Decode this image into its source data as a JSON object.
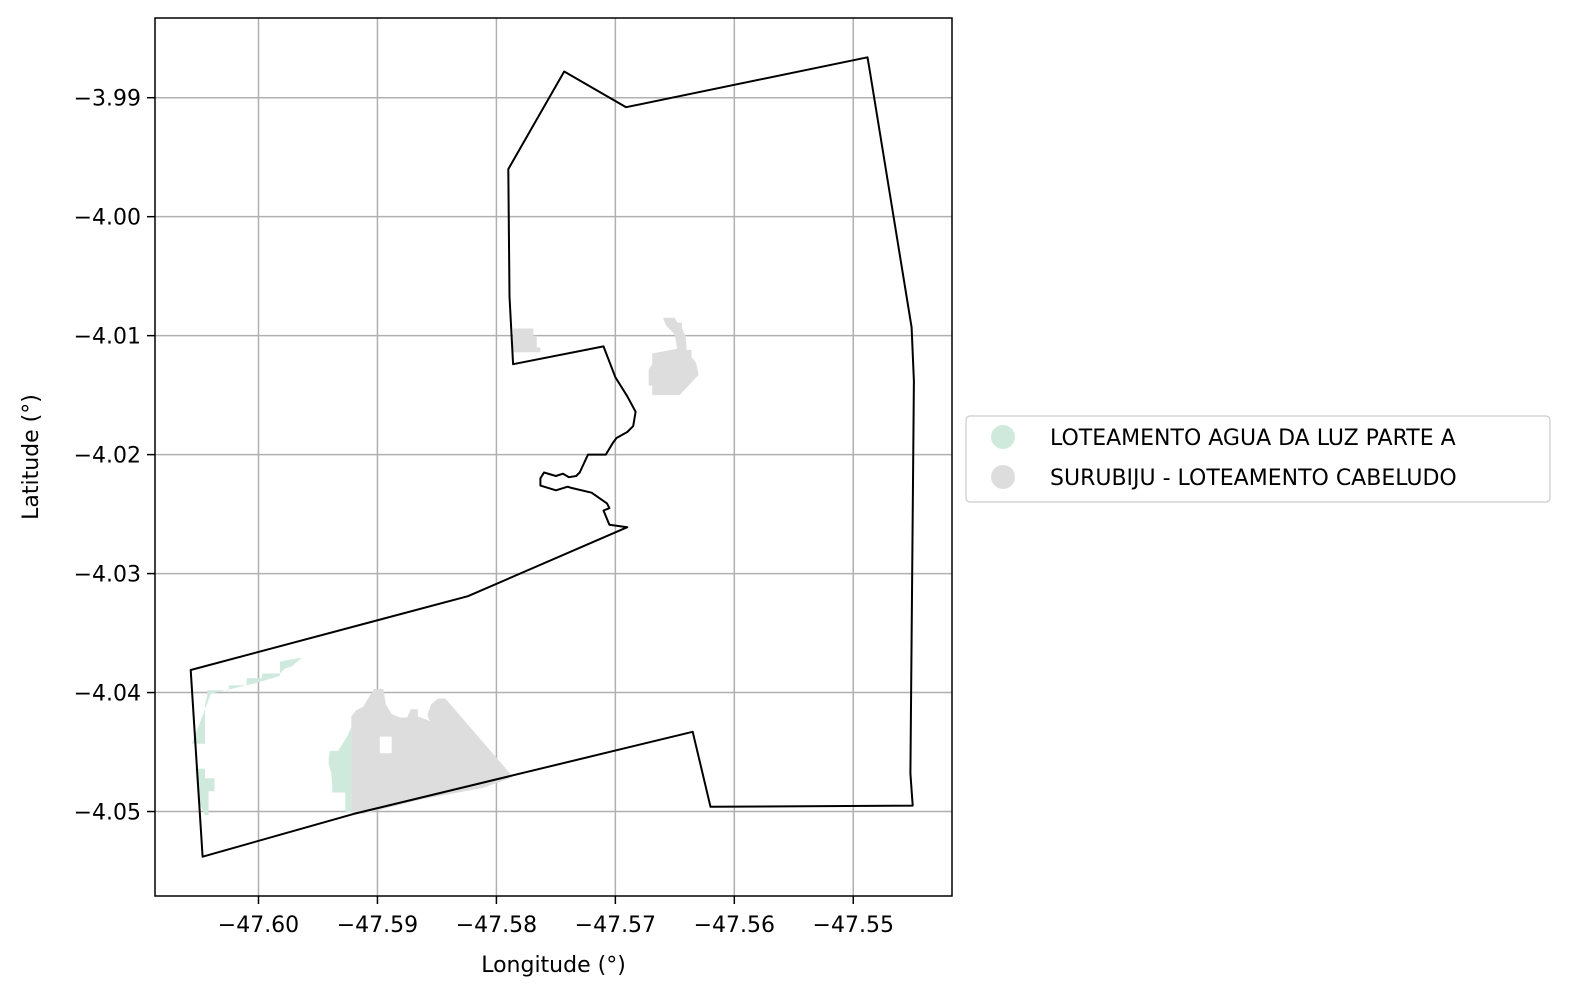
{
  "chart_data": {
    "type": "map",
    "xlabel": "Longitude (°)",
    "ylabel": "Latitude (°)",
    "xlim": [
      -47.6087,
      -47.5417
    ],
    "ylim": [
      -4.0571,
      -3.9833
    ],
    "grid": true,
    "x_ticks": [
      {
        "value": -47.6,
        "label": "−47.60"
      },
      {
        "value": -47.59,
        "label": "−47.59"
      },
      {
        "value": -47.58,
        "label": "−47.58"
      },
      {
        "value": -47.57,
        "label": "−47.57"
      },
      {
        "value": -47.56,
        "label": "−47.56"
      },
      {
        "value": -47.55,
        "label": "−47.55"
      }
    ],
    "y_ticks": [
      {
        "value": -3.99,
        "label": "−3.99"
      },
      {
        "value": -4.0,
        "label": "−4.00"
      },
      {
        "value": -4.01,
        "label": "−4.01"
      },
      {
        "value": -4.02,
        "label": "−4.02"
      },
      {
        "value": -4.03,
        "label": "−4.03"
      },
      {
        "value": -4.04,
        "label": "−4.04"
      },
      {
        "value": -4.05,
        "label": "−4.05"
      }
    ],
    "legend": {
      "placement": "right-center",
      "entries": [
        {
          "label": "LOTEAMENTO AGUA DA LUZ PARTE A",
          "color": "#cfeadd"
        },
        {
          "label": "SURUBIJU - LOTEAMENTO CABELUDO",
          "color": "#dddddd"
        }
      ]
    },
    "boundary": {
      "stroke": "#000000",
      "points": [
        [
          -47.5743,
          -3.9878
        ],
        [
          -47.5691,
          -3.9908
        ],
        [
          -47.5488,
          -3.9866
        ],
        [
          -47.5486,
          -3.9878
        ],
        [
          -47.5451,
          -4.0093
        ],
        [
          -47.5449,
          -4.0138
        ],
        [
          -47.5452,
          -4.0468
        ],
        [
          -47.545,
          -4.0495
        ],
        [
          -47.562,
          -4.0496
        ],
        [
          -47.5635,
          -4.0433
        ],
        [
          -47.592,
          -4.0502
        ],
        [
          -47.6047,
          -4.0538
        ],
        [
          -47.6057,
          -4.0381
        ],
        [
          -47.5824,
          -4.0319
        ],
        [
          -47.569,
          -4.0261
        ],
        [
          -47.5705,
          -4.0259
        ],
        [
          -47.571,
          -4.0247
        ],
        [
          -47.5705,
          -4.0245
        ],
        [
          -47.5707,
          -4.0241
        ],
        [
          -47.572,
          -4.0232
        ],
        [
          -47.5737,
          -4.0228
        ],
        [
          -47.574,
          -4.0227
        ],
        [
          -47.575,
          -4.023
        ],
        [
          -47.5763,
          -4.0226
        ],
        [
          -47.5763,
          -4.022
        ],
        [
          -47.576,
          -4.0215
        ],
        [
          -47.575,
          -4.0218
        ],
        [
          -47.5744,
          -4.0216
        ],
        [
          -47.5739,
          -4.0219
        ],
        [
          -47.5733,
          -4.0218
        ],
        [
          -47.573,
          -4.0215
        ],
        [
          -47.5723,
          -4.02
        ],
        [
          -47.5708,
          -4.02
        ],
        [
          -47.5702,
          -4.019
        ],
        [
          -47.5699,
          -4.0186
        ],
        [
          -47.569,
          -4.0181
        ],
        [
          -47.5685,
          -4.0176
        ],
        [
          -47.5683,
          -4.0164
        ],
        [
          -47.569,
          -4.0151
        ],
        [
          -47.57,
          -4.0135
        ],
        [
          -47.571,
          -4.0109
        ],
        [
          -47.5786,
          -4.0124
        ],
        [
          -47.5789,
          -4.0067
        ],
        [
          -47.579,
          -3.996
        ]
      ]
    },
    "areas": [
      {
        "legend_index": 1,
        "points": [
          [
            -47.5786,
            -4.0094
          ],
          [
            -47.5769,
            -4.0094
          ],
          [
            -47.5769,
            -4.01
          ],
          [
            -47.5766,
            -4.01
          ],
          [
            -47.5766,
            -4.011
          ],
          [
            -47.5763,
            -4.011
          ],
          [
            -47.5763,
            -4.0114
          ],
          [
            -47.5786,
            -4.0114
          ]
        ]
      },
      {
        "legend_index": 1,
        "points": [
          [
            -47.5648,
            -4.0111
          ],
          [
            -47.565,
            -4.0099
          ],
          [
            -47.5653,
            -4.0096
          ],
          [
            -47.5657,
            -4.0092
          ],
          [
            -47.566,
            -4.0085
          ],
          [
            -47.565,
            -4.0085
          ],
          [
            -47.5648,
            -4.0089
          ],
          [
            -47.5644,
            -4.0089
          ],
          [
            -47.5644,
            -4.0094
          ],
          [
            -47.5641,
            -4.01
          ],
          [
            -47.564,
            -4.0112
          ],
          [
            -47.5636,
            -4.0112
          ],
          [
            -47.5636,
            -4.0118
          ],
          [
            -47.5632,
            -4.0123
          ],
          [
            -47.563,
            -4.0133
          ],
          [
            -47.5646,
            -4.015
          ],
          [
            -47.5669,
            -4.015
          ],
          [
            -47.5669,
            -4.0142
          ],
          [
            -47.5672,
            -4.0142
          ],
          [
            -47.5672,
            -4.0128
          ],
          [
            -47.5669,
            -4.0124
          ],
          [
            -47.5669,
            -4.0115
          ]
        ]
      },
      {
        "legend_index": 1,
        "points": [
          [
            -47.5922,
            -4.0501
          ],
          [
            -47.5922,
            -4.042
          ],
          [
            -47.5918,
            -4.0415
          ],
          [
            -47.5912,
            -4.0412
          ],
          [
            -47.5909,
            -4.0407
          ],
          [
            -47.5903,
            -4.0397
          ],
          [
            -47.5895,
            -4.0397
          ],
          [
            -47.5893,
            -4.041
          ],
          [
            -47.5888,
            -4.0418
          ],
          [
            -47.5881,
            -4.0421
          ],
          [
            -47.5875,
            -4.0421
          ],
          [
            -47.5872,
            -4.0414
          ],
          [
            -47.5866,
            -4.0414
          ],
          [
            -47.5866,
            -4.042
          ],
          [
            -47.5856,
            -4.0424
          ],
          [
            -47.5858,
            -4.0419
          ],
          [
            -47.5855,
            -4.041
          ],
          [
            -47.5849,
            -4.0405
          ],
          [
            -47.5843,
            -4.0405
          ],
          [
            -47.5786,
            -4.0471
          ],
          [
            -47.5811,
            -4.048
          ],
          [
            -47.5864,
            -4.049
          ],
          [
            -47.5912,
            -4.0502
          ]
        ]
      },
      {
        "legend_index": 0,
        "points": [
          [
            -47.5922,
            -4.0501
          ],
          [
            -47.5927,
            -4.05
          ],
          [
            -47.5927,
            -4.0484
          ],
          [
            -47.5938,
            -4.0484
          ],
          [
            -47.5938,
            -4.0477
          ],
          [
            -47.5939,
            -4.0467
          ],
          [
            -47.5941,
            -4.046
          ],
          [
            -47.5941,
            -4.0455
          ],
          [
            -47.594,
            -4.0449
          ],
          [
            -47.5933,
            -4.0449
          ],
          [
            -47.5925,
            -4.0436
          ],
          [
            -47.5922,
            -4.0429
          ]
        ]
      },
      {
        "legend_index": 0,
        "points": [
          [
            -47.6045,
            -4.0503
          ],
          [
            -47.6042,
            -4.0503
          ],
          [
            -47.6042,
            -4.0483
          ],
          [
            -47.6037,
            -4.0483
          ],
          [
            -47.6037,
            -4.0472
          ],
          [
            -47.6045,
            -4.0472
          ],
          [
            -47.6045,
            -4.0464
          ],
          [
            -47.6053,
            -4.0464
          ],
          [
            -47.6051,
            -4.049
          ]
        ]
      },
      {
        "legend_index": 0,
        "points": [
          [
            -47.6056,
            -4.0443
          ],
          [
            -47.6045,
            -4.0443
          ],
          [
            -47.6045,
            -4.041
          ],
          [
            -47.6043,
            -4.0402
          ],
          [
            -47.6043,
            -4.0398
          ],
          [
            -47.6025,
            -4.0398
          ],
          [
            -47.6025,
            -4.0394
          ],
          [
            -47.601,
            -4.0394
          ],
          [
            -47.601,
            -4.0388
          ],
          [
            -47.5997,
            -4.0388
          ],
          [
            -47.5997,
            -4.0384
          ],
          [
            -47.5982,
            -4.0384
          ],
          [
            -47.5978,
            -4.038
          ],
          [
            -47.5972,
            -4.0378
          ],
          [
            -47.5964,
            -4.0371
          ],
          [
            -47.5967,
            -4.0371
          ],
          [
            -47.5982,
            -4.0374
          ],
          [
            -47.5982,
            -4.0386
          ],
          [
            -47.6002,
            -4.0392
          ],
          [
            -47.604,
            -4.0401
          ]
        ]
      }
    ],
    "holes": [
      [
        [
          -47.5898,
          -4.0437
        ],
        [
          -47.5888,
          -4.0437
        ],
        [
          -47.5888,
          -4.0451
        ],
        [
          -47.5898,
          -4.0451
        ]
      ]
    ]
  }
}
